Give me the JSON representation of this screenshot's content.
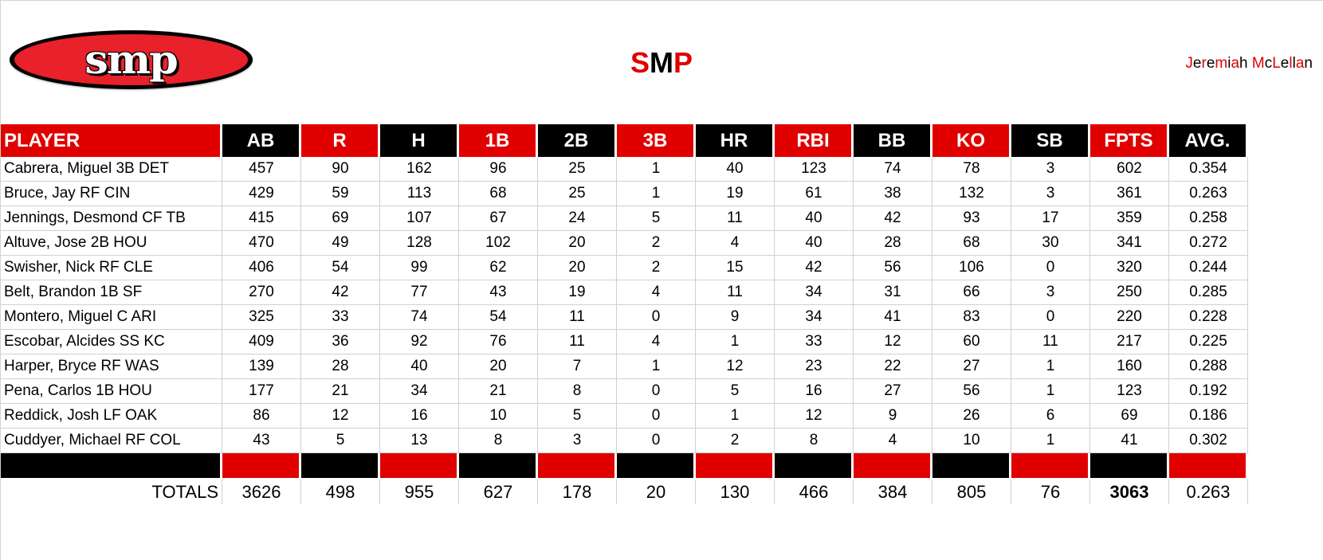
{
  "logo": {
    "text": "SMP",
    "icon": "smp-oval-logo"
  },
  "title": {
    "letters": [
      {
        "char": "S",
        "color": "#e00000"
      },
      {
        "char": "M",
        "color": "#000000"
      },
      {
        "char": "P",
        "color": "#e00000"
      }
    ]
  },
  "author": {
    "text": "Jeremiah McLellan",
    "letters": [
      {
        "char": "J",
        "color": "#e00000"
      },
      {
        "char": "e",
        "color": "#000000"
      },
      {
        "char": "r",
        "color": "#e00000"
      },
      {
        "char": "e",
        "color": "#000000"
      },
      {
        "char": "m",
        "color": "#e00000"
      },
      {
        "char": "i",
        "color": "#000000"
      },
      {
        "char": "a",
        "color": "#e00000"
      },
      {
        "char": "h",
        "color": "#000000"
      },
      {
        "char": " ",
        "color": "#000000"
      },
      {
        "char": "M",
        "color": "#e00000"
      },
      {
        "char": "c",
        "color": "#000000"
      },
      {
        "char": "L",
        "color": "#e00000"
      },
      {
        "char": "e",
        "color": "#000000"
      },
      {
        "char": "l",
        "color": "#e00000"
      },
      {
        "char": "l",
        "color": "#000000"
      },
      {
        "char": "a",
        "color": "#e00000"
      },
      {
        "char": "n",
        "color": "#000000"
      }
    ]
  },
  "colors": {
    "red": "#e00000",
    "black": "#000000",
    "grid": "#d0d0d0"
  },
  "table": {
    "headers": [
      "PLAYER",
      "AB",
      "R",
      "H",
      "1B",
      "2B",
      "3B",
      "HR",
      "RBI",
      "BB",
      "KO",
      "SB",
      "FPTS",
      "AVG."
    ],
    "header_colors": [
      "red",
      "black",
      "red",
      "black",
      "red",
      "black",
      "red",
      "black",
      "red",
      "black",
      "red",
      "black",
      "red",
      "black"
    ],
    "separator_colors": [
      "black",
      "red",
      "black",
      "red",
      "black",
      "red",
      "black",
      "red",
      "black",
      "red",
      "black",
      "red",
      "black",
      "red"
    ],
    "rows": [
      [
        "Cabrera, Miguel 3B DET",
        "457",
        "90",
        "162",
        "96",
        "25",
        "1",
        "40",
        "123",
        "74",
        "78",
        "3",
        "602",
        "0.354"
      ],
      [
        "Bruce, Jay RF CIN",
        "429",
        "59",
        "113",
        "68",
        "25",
        "1",
        "19",
        "61",
        "38",
        "132",
        "3",
        "361",
        "0.263"
      ],
      [
        "Jennings, Desmond CF TB",
        "415",
        "69",
        "107",
        "67",
        "24",
        "5",
        "11",
        "40",
        "42",
        "93",
        "17",
        "359",
        "0.258"
      ],
      [
        "Altuve, Jose 2B HOU",
        "470",
        "49",
        "128",
        "102",
        "20",
        "2",
        "4",
        "40",
        "28",
        "68",
        "30",
        "341",
        "0.272"
      ],
      [
        "Swisher, Nick RF CLE",
        "406",
        "54",
        "99",
        "62",
        "20",
        "2",
        "15",
        "42",
        "56",
        "106",
        "0",
        "320",
        "0.244"
      ],
      [
        "Belt, Brandon 1B SF",
        "270",
        "42",
        "77",
        "43",
        "19",
        "4",
        "11",
        "34",
        "31",
        "66",
        "3",
        "250",
        "0.285"
      ],
      [
        "Montero, Miguel C ARI",
        "325",
        "33",
        "74",
        "54",
        "11",
        "0",
        "9",
        "34",
        "41",
        "83",
        "0",
        "220",
        "0.228"
      ],
      [
        "Escobar, Alcides SS KC",
        "409",
        "36",
        "92",
        "76",
        "11",
        "4",
        "1",
        "33",
        "12",
        "60",
        "11",
        "217",
        "0.225"
      ],
      [
        "Harper, Bryce RF WAS",
        "139",
        "28",
        "40",
        "20",
        "7",
        "1",
        "12",
        "23",
        "22",
        "27",
        "1",
        "160",
        "0.288"
      ],
      [
        "Pena, Carlos 1B HOU",
        "177",
        "21",
        "34",
        "21",
        "8",
        "0",
        "5",
        "16",
        "27",
        "56",
        "1",
        "123",
        "0.192"
      ],
      [
        "Reddick, Josh LF OAK",
        "86",
        "12",
        "16",
        "10",
        "5",
        "0",
        "1",
        "12",
        "9",
        "26",
        "6",
        "69",
        "0.186"
      ],
      [
        "Cuddyer, Michael RF COL",
        "43",
        "5",
        "13",
        "8",
        "3",
        "0",
        "2",
        "8",
        "4",
        "10",
        "1",
        "41",
        "0.302"
      ]
    ],
    "totals": [
      "TOTALS",
      "3626",
      "498",
      "955",
      "627",
      "178",
      "20",
      "130",
      "466",
      "384",
      "805",
      "76",
      "3063",
      "0.263"
    ]
  }
}
